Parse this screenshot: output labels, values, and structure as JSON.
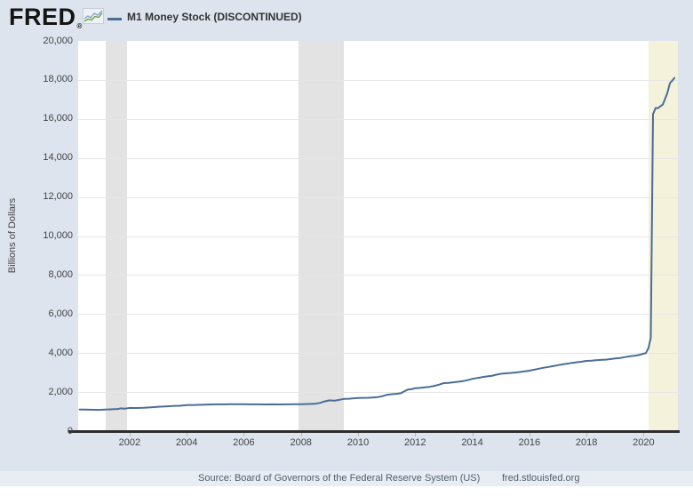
{
  "header": {
    "logo_text": "FRED",
    "logo_registered": "®",
    "legend_label": "M1 Money Stock (DISCONTINUED)"
  },
  "footer": {
    "source_text": "Source: Board of Governors of the Federal Reserve System (US)",
    "site_link": "fred.stlouisfed.org"
  },
  "colors": {
    "background": "#dde4ee",
    "footer_bar": "#e8edf4",
    "plot_bg": "#ffffff",
    "gridline": "#e6e6e6",
    "recession_band": "#e3e3e3",
    "recession_band_current": "#f5f2dc",
    "line": "#4a6d96",
    "axis_line": "#2d2d2d",
    "tick_text": "#444444",
    "icon_line_green": "#6b9e3f",
    "icon_line_blue": "#7fa7c9"
  },
  "chart_data": {
    "type": "line",
    "title": "M1 Money Stock (DISCONTINUED)",
    "ylabel": "Billions of Dollars",
    "xlabel": "",
    "grid": "horizontal",
    "legend_position": "top-left",
    "xlim": [
      2000.2,
      2021.2
    ],
    "ylim": [
      0,
      20000
    ],
    "yticks": [
      0,
      2000,
      4000,
      6000,
      8000,
      10000,
      12000,
      14000,
      16000,
      18000,
      20000
    ],
    "ytick_labels": [
      "0",
      "2,000",
      "4,000",
      "6,000",
      "8,000",
      "10,000",
      "12,000",
      "14,000",
      "16,000",
      "18,000",
      "20,000"
    ],
    "xticks": [
      2002,
      2004,
      2006,
      2008,
      2010,
      2012,
      2014,
      2016,
      2018,
      2020
    ],
    "xtick_labels": [
      "2002",
      "2004",
      "2006",
      "2008",
      "2010",
      "2012",
      "2014",
      "2016",
      "2018",
      "2020"
    ],
    "recession_bands": [
      {
        "start": 2001.17,
        "end": 2001.92,
        "style": "past"
      },
      {
        "start": 2007.92,
        "end": 2009.5,
        "style": "past"
      },
      {
        "start": 2020.17,
        "end": 2021.2,
        "style": "current"
      }
    ],
    "series": [
      {
        "name": "M1 Money Stock (DISCONTINUED)",
        "color": "#4a6d96",
        "units": "Billions of Dollars",
        "points": [
          [
            2000.25,
            1105
          ],
          [
            2000.42,
            1102
          ],
          [
            2000.58,
            1098
          ],
          [
            2000.75,
            1095
          ],
          [
            2000.92,
            1088
          ],
          [
            2001.08,
            1100
          ],
          [
            2001.25,
            1110
          ],
          [
            2001.42,
            1120
          ],
          [
            2001.58,
            1135
          ],
          [
            2001.7,
            1165
          ],
          [
            2001.83,
            1150
          ],
          [
            2002.0,
            1190
          ],
          [
            2002.25,
            1185
          ],
          [
            2002.5,
            1200
          ],
          [
            2002.75,
            1220
          ],
          [
            2003.0,
            1250
          ],
          [
            2003.25,
            1265
          ],
          [
            2003.5,
            1290
          ],
          [
            2003.75,
            1300
          ],
          [
            2004.0,
            1330
          ],
          [
            2004.25,
            1340
          ],
          [
            2004.5,
            1350
          ],
          [
            2004.75,
            1360
          ],
          [
            2005.0,
            1370
          ],
          [
            2005.25,
            1372
          ],
          [
            2005.5,
            1375
          ],
          [
            2005.75,
            1375
          ],
          [
            2006.0,
            1375
          ],
          [
            2006.25,
            1372
          ],
          [
            2006.5,
            1370
          ],
          [
            2006.75,
            1368
          ],
          [
            2007.0,
            1370
          ],
          [
            2007.25,
            1368
          ],
          [
            2007.5,
            1370
          ],
          [
            2007.75,
            1375
          ],
          [
            2008.0,
            1380
          ],
          [
            2008.25,
            1390
          ],
          [
            2008.5,
            1400
          ],
          [
            2008.67,
            1450
          ],
          [
            2008.83,
            1520
          ],
          [
            2009.0,
            1575
          ],
          [
            2009.17,
            1560
          ],
          [
            2009.33,
            1600
          ],
          [
            2009.5,
            1650
          ],
          [
            2009.67,
            1660
          ],
          [
            2009.83,
            1680
          ],
          [
            2010.0,
            1700
          ],
          [
            2010.17,
            1705
          ],
          [
            2010.33,
            1710
          ],
          [
            2010.5,
            1722
          ],
          [
            2010.67,
            1740
          ],
          [
            2010.83,
            1780
          ],
          [
            2011.0,
            1860
          ],
          [
            2011.17,
            1890
          ],
          [
            2011.33,
            1910
          ],
          [
            2011.5,
            1940
          ],
          [
            2011.58,
            2010
          ],
          [
            2011.75,
            2130
          ],
          [
            2011.92,
            2165
          ],
          [
            2012.0,
            2200
          ],
          [
            2012.17,
            2215
          ],
          [
            2012.33,
            2240
          ],
          [
            2012.5,
            2270
          ],
          [
            2012.67,
            2320
          ],
          [
            2012.83,
            2380
          ],
          [
            2013.0,
            2460
          ],
          [
            2013.17,
            2470
          ],
          [
            2013.33,
            2500
          ],
          [
            2013.5,
            2530
          ],
          [
            2013.67,
            2560
          ],
          [
            2013.83,
            2610
          ],
          [
            2014.0,
            2680
          ],
          [
            2014.17,
            2720
          ],
          [
            2014.33,
            2760
          ],
          [
            2014.5,
            2800
          ],
          [
            2014.67,
            2830
          ],
          [
            2014.83,
            2890
          ],
          [
            2015.0,
            2940
          ],
          [
            2015.17,
            2960
          ],
          [
            2015.33,
            2980
          ],
          [
            2015.5,
            3000
          ],
          [
            2015.67,
            3030
          ],
          [
            2015.83,
            3060
          ],
          [
            2016.0,
            3100
          ],
          [
            2016.17,
            3150
          ],
          [
            2016.33,
            3200
          ],
          [
            2016.5,
            3250
          ],
          [
            2016.67,
            3290
          ],
          [
            2016.83,
            3330
          ],
          [
            2017.0,
            3380
          ],
          [
            2017.17,
            3420
          ],
          [
            2017.33,
            3460
          ],
          [
            2017.5,
            3500
          ],
          [
            2017.67,
            3530
          ],
          [
            2017.83,
            3560
          ],
          [
            2018.0,
            3600
          ],
          [
            2018.17,
            3615
          ],
          [
            2018.33,
            3635
          ],
          [
            2018.5,
            3650
          ],
          [
            2018.67,
            3665
          ],
          [
            2018.83,
            3690
          ],
          [
            2019.0,
            3720
          ],
          [
            2019.17,
            3745
          ],
          [
            2019.33,
            3790
          ],
          [
            2019.5,
            3830
          ],
          [
            2019.67,
            3860
          ],
          [
            2019.83,
            3900
          ],
          [
            2020.0,
            3970
          ],
          [
            2020.08,
            4000
          ],
          [
            2020.17,
            4260
          ],
          [
            2020.25,
            4790
          ],
          [
            2020.33,
            16240
          ],
          [
            2020.42,
            16560
          ],
          [
            2020.5,
            16550
          ],
          [
            2020.58,
            16640
          ],
          [
            2020.67,
            16740
          ],
          [
            2020.75,
            17020
          ],
          [
            2020.83,
            17320
          ],
          [
            2020.92,
            17830
          ],
          [
            2021.0,
            17960
          ],
          [
            2021.08,
            18100
          ]
        ]
      }
    ]
  }
}
